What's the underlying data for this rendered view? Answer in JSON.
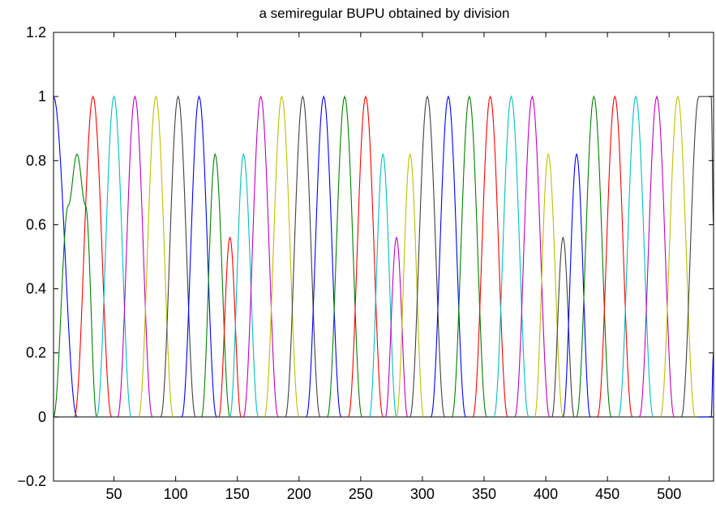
{
  "chart_data": {
    "type": "line",
    "title": "a semiregular BUPU obtained by division",
    "xlabel": "",
    "ylabel": "",
    "xlim": [
      1,
      536
    ],
    "ylim": [
      -0.2,
      1.2
    ],
    "xticks": [
      50,
      100,
      150,
      200,
      250,
      300,
      350,
      400,
      450,
      500
    ],
    "yticks": [
      -0.2,
      0,
      0.2,
      0.4,
      0.6,
      0.8,
      1,
      1.2
    ],
    "ytick_labels": [
      "−0.2",
      "0",
      "0.2",
      "0.4",
      "0.6",
      "0.8",
      "1",
      "1.2"
    ],
    "grid": false,
    "legend": "none",
    "color_cycle": [
      "#0000ff",
      "#008000",
      "#ff0000",
      "#00bfbf",
      "#bf00bf",
      "#bfbf00",
      "#404040"
    ],
    "series": [
      {
        "color": "#0000ff",
        "points": [
          [
            1,
            1
          ],
          [
            20,
            0
          ]
        ]
      },
      {
        "color": "#008000",
        "points": [
          [
            1,
            0
          ],
          [
            13,
            0.66
          ],
          [
            20,
            0.82
          ],
          [
            27,
            0.66
          ],
          [
            36,
            0
          ]
        ]
      },
      {
        "color": "#ff0000",
        "points": [
          [
            18,
            0
          ],
          [
            33,
            1
          ],
          [
            48,
            0
          ]
        ]
      },
      {
        "color": "#00bfbf",
        "points": [
          [
            36,
            0
          ],
          [
            50,
            1
          ],
          [
            64,
            0
          ]
        ]
      },
      {
        "color": "#bf00bf",
        "points": [
          [
            53,
            0
          ],
          [
            67,
            1
          ],
          [
            81,
            0
          ]
        ]
      },
      {
        "color": "#bfbf00",
        "points": [
          [
            70,
            0
          ],
          [
            84,
            1
          ],
          [
            98,
            0
          ]
        ]
      },
      {
        "color": "#404040",
        "points": [
          [
            88,
            0
          ],
          [
            102,
            1
          ],
          [
            116,
            0
          ]
        ]
      },
      {
        "color": "#0000ff",
        "points": [
          [
            105,
            0
          ],
          [
            119,
            1
          ],
          [
            133,
            0
          ]
        ]
      },
      {
        "color": "#008000",
        "points": [
          [
            121,
            0
          ],
          [
            132,
            0.82
          ],
          [
            144,
            0
          ]
        ]
      },
      {
        "color": "#ff0000",
        "points": [
          [
            135,
            0
          ],
          [
            144,
            0.56
          ],
          [
            153,
            0
          ]
        ]
      },
      {
        "color": "#00bfbf",
        "points": [
          [
            144,
            0
          ],
          [
            155,
            0.82
          ],
          [
            167,
            0
          ]
        ]
      },
      {
        "color": "#bf00bf",
        "points": [
          [
            155,
            0
          ],
          [
            169,
            1
          ],
          [
            183,
            0
          ]
        ]
      },
      {
        "color": "#bfbf00",
        "points": [
          [
            172,
            0
          ],
          [
            186,
            1
          ],
          [
            200,
            0
          ]
        ]
      },
      {
        "color": "#404040",
        "points": [
          [
            189,
            0
          ],
          [
            203,
            1
          ],
          [
            217,
            0
          ]
        ]
      },
      {
        "color": "#0000ff",
        "points": [
          [
            206,
            0
          ],
          [
            220,
            1
          ],
          [
            234,
            0
          ]
        ]
      },
      {
        "color": "#008000",
        "points": [
          [
            223,
            0
          ],
          [
            237,
            1
          ],
          [
            251,
            0
          ]
        ]
      },
      {
        "color": "#ff0000",
        "points": [
          [
            240,
            0
          ],
          [
            254,
            1
          ],
          [
            268,
            0
          ]
        ]
      },
      {
        "color": "#00bfbf",
        "points": [
          [
            257,
            0
          ],
          [
            268,
            0.82
          ],
          [
            279,
            0
          ]
        ]
      },
      {
        "color": "#bf00bf",
        "points": [
          [
            270,
            0
          ],
          [
            279,
            0.56
          ],
          [
            288,
            0
          ]
        ]
      },
      {
        "color": "#bfbf00",
        "points": [
          [
            279,
            0
          ],
          [
            290,
            0.82
          ],
          [
            301,
            0
          ]
        ]
      },
      {
        "color": "#404040",
        "points": [
          [
            290,
            0
          ],
          [
            304,
            1
          ],
          [
            318,
            0
          ]
        ]
      },
      {
        "color": "#0000ff",
        "points": [
          [
            307,
            0
          ],
          [
            321,
            1
          ],
          [
            335,
            0
          ]
        ]
      },
      {
        "color": "#008000",
        "points": [
          [
            324,
            0
          ],
          [
            338,
            1
          ],
          [
            352,
            0
          ]
        ]
      },
      {
        "color": "#ff0000",
        "points": [
          [
            341,
            0
          ],
          [
            355,
            1
          ],
          [
            369,
            0
          ]
        ]
      },
      {
        "color": "#00bfbf",
        "points": [
          [
            358,
            0
          ],
          [
            372,
            1
          ],
          [
            386,
            0
          ]
        ]
      },
      {
        "color": "#bf00bf",
        "points": [
          [
            375,
            0
          ],
          [
            389,
            1
          ],
          [
            403,
            0
          ]
        ]
      },
      {
        "color": "#bfbf00",
        "points": [
          [
            391,
            0
          ],
          [
            402,
            0.82
          ],
          [
            414,
            0
          ]
        ]
      },
      {
        "color": "#404040",
        "points": [
          [
            405,
            0
          ],
          [
            414,
            0.56
          ],
          [
            423,
            0
          ]
        ]
      },
      {
        "color": "#0000ff",
        "points": [
          [
            414,
            0
          ],
          [
            425,
            0.82
          ],
          [
            436,
            0
          ]
        ]
      },
      {
        "color": "#008000",
        "points": [
          [
            425,
            0
          ],
          [
            439,
            1
          ],
          [
            453,
            0
          ]
        ]
      },
      {
        "color": "#ff0000",
        "points": [
          [
            442,
            0
          ],
          [
            456,
            1
          ],
          [
            470,
            0
          ]
        ]
      },
      {
        "color": "#00bfbf",
        "points": [
          [
            459,
            0
          ],
          [
            473,
            1
          ],
          [
            487,
            0
          ]
        ]
      },
      {
        "color": "#bf00bf",
        "points": [
          [
            476,
            0
          ],
          [
            490,
            1
          ],
          [
            504,
            0
          ]
        ]
      },
      {
        "color": "#bfbf00",
        "points": [
          [
            493,
            0
          ],
          [
            507,
            1
          ],
          [
            521,
            0
          ]
        ]
      },
      {
        "color": "#404040",
        "points": [
          [
            510,
            0
          ],
          [
            524,
            1
          ],
          [
            534,
            1
          ],
          [
            536,
            0.6
          ]
        ]
      },
      {
        "color": "#0000ff",
        "points": [
          [
            524,
            0
          ],
          [
            534,
            0
          ],
          [
            536,
            0.2
          ]
        ]
      }
    ]
  }
}
